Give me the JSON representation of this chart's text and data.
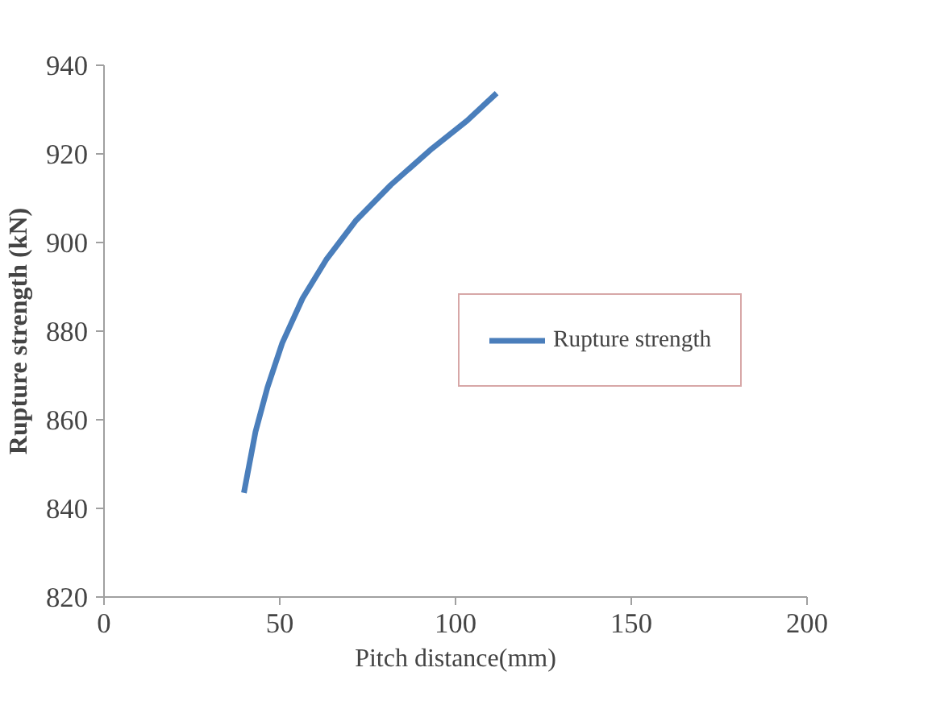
{
  "chart_data": {
    "type": "line",
    "xlabel": "Pitch distance(mm)",
    "ylabel": "Rupture strength (kN)",
    "x": [
      39.8,
      43.1,
      46.5,
      50.7,
      56.5,
      63.2,
      71.6,
      81.6,
      93.3,
      103.3,
      111.7
    ],
    "series": [
      {
        "name": "Rupture strength",
        "color": "#4a7ebb",
        "values": [
          843.5,
          857.3,
          867.3,
          877.3,
          887.4,
          896.1,
          904.9,
          913,
          921.2,
          927.5,
          933.7
        ]
      }
    ],
    "xlim": [
      0,
      200
    ],
    "xticks": [
      0,
      50,
      100,
      150,
      200
    ],
    "ylim": [
      820,
      940
    ],
    "yticks": [
      820,
      840,
      860,
      880,
      900,
      920,
      940
    ],
    "grid": false,
    "legend": "right",
    "marker": "none",
    "line_style": "solid"
  }
}
